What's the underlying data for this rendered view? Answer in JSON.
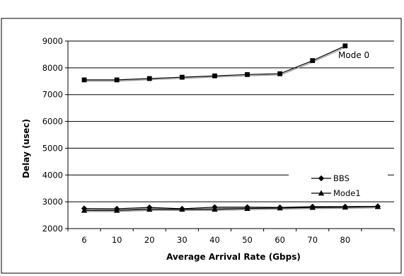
{
  "chart_data": {
    "type": "line",
    "categories": [
      "6",
      "10",
      "20",
      "30",
      "40",
      "50",
      "60",
      "70",
      "80",
      ""
    ],
    "xlabel": "Average Arrival Rate (Gbps)",
    "ylabel": "Delay (usec)",
    "ylim": [
      2000,
      9000
    ],
    "yticks": [
      2000,
      3000,
      4000,
      5000,
      6000,
      7000,
      8000,
      9000
    ],
    "grid": "horizontal",
    "legend_position": "right",
    "annotations": [
      {
        "text": "Mode 0",
        "series": "Mode 0"
      }
    ],
    "series": [
      {
        "name": "Mode 0",
        "marker": "square",
        "values": [
          7550,
          7550,
          7600,
          7650,
          7700,
          7750,
          7780,
          8270,
          8820,
          null
        ]
      },
      {
        "name": "BBS",
        "marker": "diamond",
        "values": [
          2750,
          2740,
          2790,
          2740,
          2800,
          2800,
          2790,
          2820,
          2820,
          2830
        ]
      },
      {
        "name": "Mode1",
        "marker": "triangle",
        "values": [
          2680,
          2680,
          2720,
          2720,
          2720,
          2750,
          2770,
          2790,
          2800,
          2820
        ]
      }
    ],
    "legend": [
      "BBS",
      "Mode1"
    ]
  }
}
